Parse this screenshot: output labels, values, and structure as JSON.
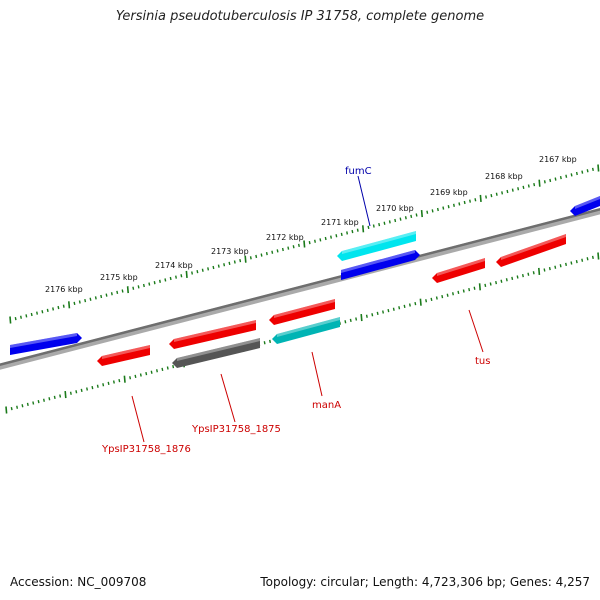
{
  "title": "Yersinia pseudotuberculosis IP 31758, complete genome",
  "footer": {
    "accession": "Accession: NC_009708",
    "summary": "Topology: circular; Length: 4,723,306 bp; Genes: 4,257"
  },
  "scale_labels": [
    "2176 kbp",
    "2175 kbp",
    "2174 kbp",
    "2173 kbp",
    "2172 kbp",
    "2171 kbp",
    "2170 kbp",
    "2169 kbp",
    "2168 kbp",
    "2167 kbp"
  ],
  "gene_labels": [
    {
      "name": "fumC",
      "color": "#0000aa"
    },
    {
      "name": "tus",
      "color": "#cc0000"
    },
    {
      "name": "manA",
      "color": "#cc0000"
    },
    {
      "name": "YpsIP31758_1875",
      "color": "#cc0000"
    },
    {
      "name": "YpsIP31758_1876",
      "color": "#cc0000"
    }
  ],
  "colors": {
    "backbone": "#808080",
    "tick": "#1a7a1a",
    "gene_blue": "#0000ee",
    "gene_red": "#ee0000",
    "gene_cyan": "#00e5ee",
    "gene_teal": "#00b4b4",
    "gene_gray": "#555555"
  }
}
